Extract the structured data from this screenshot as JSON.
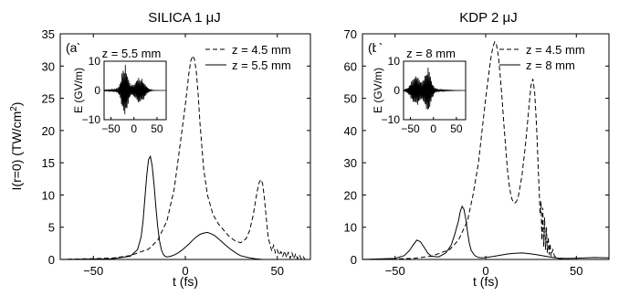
{
  "chart_data": [
    {
      "type": "line",
      "title": "SILICA 1 μJ",
      "panel_label": "(a)",
      "xlabel": "t (fs)",
      "ylabel": "I(r=0) (TW/cm²)",
      "xlim": [
        -68,
        68
      ],
      "ylim": [
        0,
        35
      ],
      "xticks": [
        -50,
        0,
        50
      ],
      "yticks": [
        0,
        5,
        10,
        15,
        20,
        25,
        30,
        35
      ],
      "grid": false,
      "legend": "top-right",
      "series": [
        {
          "name": "z = 4.5 mm",
          "style": "dashed",
          "x": [
            -68,
            -40,
            -30,
            -20,
            -15,
            -10,
            -6,
            -3,
            0,
            1,
            2,
            3,
            4,
            5,
            6,
            7,
            8,
            10,
            12,
            15,
            18,
            21,
            24,
            27,
            30,
            33,
            35,
            37,
            38,
            39,
            40,
            41,
            42,
            43,
            44,
            45,
            46,
            47,
            48,
            49,
            50,
            51,
            52,
            53,
            54,
            55,
            56,
            57,
            58,
            59,
            60,
            61,
            62,
            63,
            64,
            65,
            68
          ],
          "y": [
            0,
            0.2,
            0.6,
            1.6,
            3,
            6,
            11,
            17.5,
            24,
            26.5,
            29,
            30.8,
            31.6,
            31,
            29,
            25.5,
            21,
            14,
            10,
            7,
            5.5,
            4.5,
            3.5,
            2.9,
            2.6,
            3.2,
            4.5,
            7,
            8.8,
            10.5,
            11.8,
            12.4,
            11.8,
            9.5,
            6.5,
            3.5,
            2.3,
            1.3,
            2.2,
            1,
            1.5,
            0.7,
            1.2,
            0.5,
            1.3,
            0.3,
            1.1,
            0.2,
            1,
            0.1,
            0.9,
            0.1,
            0.7,
            0.1,
            0.5,
            0,
            0
          ]
        },
        {
          "name": "z = 5.5 mm",
          "style": "solid",
          "x": [
            -68,
            -40,
            -30,
            -26,
            -24,
            -23,
            -22,
            -21,
            -20,
            -19,
            -18,
            -17,
            -16,
            -15,
            -14,
            -13,
            -12,
            -11,
            -10,
            -8,
            -6,
            -4,
            -2,
            0,
            2,
            4,
            6,
            8,
            10,
            12,
            14,
            16,
            18,
            20,
            22,
            24,
            26,
            28,
            30,
            34,
            38,
            42,
            46,
            50,
            55,
            60,
            68
          ],
          "y": [
            0,
            0.1,
            0.5,
            1.5,
            3.5,
            6,
            9.5,
            13,
            15.5,
            16,
            14.5,
            11.5,
            8,
            5,
            2.8,
            1.5,
            0.8,
            0.5,
            0.4,
            0.5,
            0.7,
            1,
            1.4,
            1.9,
            2.4,
            3,
            3.5,
            3.9,
            4.1,
            4.2,
            4,
            3.7,
            3.2,
            2.7,
            2.2,
            1.7,
            1.3,
            0.9,
            0.6,
            0.3,
            0.1,
            0,
            0,
            0,
            0,
            0,
            0
          ]
        }
      ],
      "inset": {
        "title": "z = 5.5 mm",
        "xlabel": "",
        "ylabel": "E (GV/m)",
        "xlim": [
          -65,
          70
        ],
        "ylim": [
          -10,
          10
        ],
        "xticks": [
          -50,
          0,
          50
        ],
        "yticks": [
          -10,
          0,
          10
        ],
        "envelope_peak_t": -20,
        "envelope_peak_E": 8.5,
        "secondary_envelope_peak_t": 12,
        "secondary_envelope_E": 4.5
      }
    },
    {
      "type": "line",
      "title": "KDP 2 μJ",
      "panel_label": "(b)",
      "xlabel": "t (fs)",
      "ylabel": "",
      "xlim": [
        -68,
        68
      ],
      "ylim": [
        0,
        70
      ],
      "xticks": [
        -50,
        0,
        50
      ],
      "yticks": [
        0,
        10,
        20,
        30,
        40,
        50,
        60,
        70
      ],
      "grid": false,
      "legend": "top-right",
      "series": [
        {
          "name": "z = 4.5 mm",
          "style": "dashed",
          "x": [
            -68,
            -40,
            -30,
            -20,
            -15,
            -10,
            -7,
            -4,
            -2,
            0,
            2,
            3,
            4,
            5,
            6,
            7,
            8,
            9,
            10,
            11,
            12,
            13,
            14,
            15,
            16,
            17,
            18,
            20,
            22,
            24,
            25,
            26,
            27,
            28,
            29,
            30,
            30.5,
            31,
            31.5,
            32,
            32.5,
            33,
            33.5,
            34,
            34.5,
            35,
            35.5,
            36,
            37,
            38,
            40,
            45,
            50,
            68
          ],
          "y": [
            0,
            0.3,
            1,
            3,
            6,
            12,
            20,
            30,
            40,
            50,
            59,
            63,
            66,
            67.5,
            66.5,
            63,
            57,
            50,
            42,
            35,
            28,
            23,
            19.5,
            18,
            17.5,
            18,
            19.5,
            26,
            36,
            48,
            54,
            56,
            52,
            42,
            28,
            14,
            18,
            6,
            16,
            4,
            13,
            3,
            10,
            2,
            7,
            1.5,
            5,
            1,
            3,
            1,
            0.3,
            0,
            0,
            0
          ]
        },
        {
          "name": "z = 8 mm",
          "style": "solid",
          "x": [
            -68,
            -50,
            -45,
            -42,
            -40,
            -38,
            -36,
            -34,
            -32,
            -30,
            -26,
            -22,
            -19,
            -17,
            -15,
            -14,
            -13,
            -12,
            -11,
            -10,
            -9,
            -8,
            -6,
            -4,
            -2,
            0,
            4,
            8,
            12,
            16,
            20,
            24,
            28,
            32,
            36,
            40,
            45,
            50,
            55,
            60,
            68
          ],
          "y": [
            0,
            0.3,
            1.2,
            2.8,
            4.5,
            6,
            5.5,
            3.8,
            2,
            1,
            0.8,
            2,
            4.5,
            8,
            12,
            15,
            16.5,
            15.5,
            12.5,
            8.5,
            5,
            2.8,
            1.2,
            0.6,
            0.5,
            0.6,
            0.9,
            1.3,
            1.7,
            1.9,
            2,
            1.8,
            1.5,
            1.1,
            0.7,
            0.4,
            0.3,
            0.4,
            0.5,
            0.6,
            0.5
          ]
        }
      ],
      "inset": {
        "title": "z = 8 mm",
        "xlabel": "",
        "ylabel": "E (GV/m)",
        "xlim": [
          -65,
          70
        ],
        "ylim": [
          -10,
          10
        ],
        "xticks": [
          -50,
          0,
          50
        ],
        "yticks": [
          -10,
          0,
          10
        ],
        "envelope_peak_t": -12,
        "envelope_peak_E": 7.5,
        "secondary_envelope_peak_t": -38,
        "secondary_envelope_E": 5
      }
    }
  ]
}
